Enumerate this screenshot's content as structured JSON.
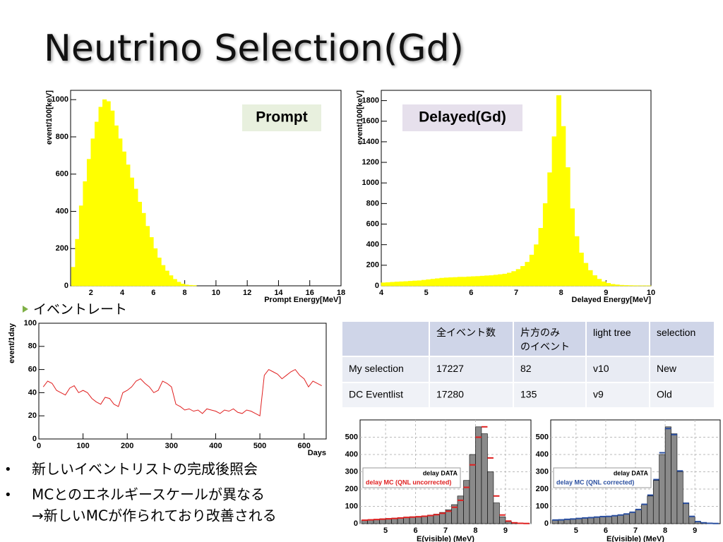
{
  "slide": {
    "title": "Neutrino Selection(Gd)",
    "rate_heading": "イベントレート",
    "bullets": [
      "新しいイベントリストの完成後照会",
      "MCとのエネルギースケールが異なる",
      "→新しいMCが作られており改善される"
    ]
  },
  "table": {
    "header": [
      "全イベント数",
      "片方のみ\nのイベント",
      "light tree",
      "selection"
    ],
    "rows": [
      [
        "My selection",
        "17227",
        "82",
        "v10",
        "New"
      ],
      [
        "DC Eventlist",
        "17280",
        "135",
        "v9",
        "Old"
      ]
    ]
  },
  "chart_data": [
    {
      "type": "histogram",
      "annotation": "Prompt",
      "x_label": "Prompt Energy[MeV]",
      "y_label": "event/100[keV]",
      "color": "#ffff00",
      "bins": [
        0.75,
        1,
        1.25,
        1.5,
        1.75,
        2,
        2.25,
        2.5,
        2.75,
        3,
        3.25,
        3.5,
        3.75,
        4,
        4.25,
        4.5,
        4.75,
        5,
        5.25,
        5.5,
        5.75,
        6,
        6.25,
        6.5,
        6.75,
        7,
        7.25,
        7.5,
        7.75,
        8,
        8.25,
        8.5,
        8.75
      ],
      "values": [
        100,
        250,
        430,
        560,
        680,
        790,
        880,
        960,
        1000,
        990,
        940,
        860,
        790,
        720,
        650,
        580,
        520,
        450,
        390,
        320,
        260,
        200,
        150,
        110,
        80,
        55,
        35,
        20,
        10,
        5,
        3,
        2
      ],
      "xlim": [
        0.7,
        18
      ],
      "xticks": [
        2,
        4,
        6,
        8,
        10,
        12,
        14,
        16,
        18
      ],
      "ylim": [
        0,
        1050
      ],
      "yticks": [
        0,
        200,
        400,
        600,
        800,
        1000
      ],
      "grid": false
    },
    {
      "type": "histogram",
      "annotation": "Delayed(Gd)",
      "x_label": "Delayed Energy[MeV]",
      "y_label": "event/100[keV]",
      "color": "#ffff00",
      "bins": [
        4,
        4.1,
        4.2,
        4.3,
        4.4,
        4.5,
        4.6,
        4.7,
        4.8,
        4.9,
        5,
        5.1,
        5.2,
        5.3,
        5.4,
        5.5,
        5.6,
        5.7,
        5.8,
        5.9,
        6,
        6.1,
        6.2,
        6.3,
        6.4,
        6.5,
        6.6,
        6.7,
        6.8,
        6.9,
        7,
        7.1,
        7.2,
        7.3,
        7.4,
        7.5,
        7.6,
        7.7,
        7.8,
        7.9,
        8,
        8.1,
        8.2,
        8.3,
        8.4,
        8.5,
        8.6,
        8.7,
        8.8,
        8.9,
        9,
        9.1,
        9.2,
        9.3,
        9.4,
        9.5,
        9.6,
        9.7,
        9.8,
        9.9,
        10
      ],
      "values": [
        30,
        32,
        35,
        38,
        40,
        42,
        45,
        48,
        50,
        55,
        60,
        65,
        70,
        75,
        78,
        80,
        82,
        85,
        85,
        88,
        90,
        92,
        95,
        98,
        100,
        105,
        110,
        115,
        125,
        140,
        160,
        190,
        230,
        300,
        400,
        560,
        800,
        1100,
        1450,
        1850,
        1550,
        1150,
        750,
        480,
        320,
        220,
        150,
        100,
        65,
        40,
        25,
        15,
        10,
        6,
        4,
        3,
        2,
        1,
        1,
        1
      ],
      "xlim": [
        4,
        10
      ],
      "xticks": [
        4,
        5,
        6,
        7,
        8,
        9,
        10
      ],
      "ylim": [
        0,
        1900
      ],
      "yticks": [
        0,
        200,
        400,
        600,
        800,
        1000,
        1200,
        1400,
        1600,
        1800
      ],
      "grid": false
    },
    {
      "type": "line",
      "x_label": "Days",
      "y_label": "event/1day",
      "color": "#e02020",
      "x": [
        10,
        20,
        30,
        40,
        50,
        60,
        70,
        80,
        90,
        100,
        110,
        120,
        130,
        140,
        150,
        160,
        170,
        180,
        190,
        200,
        210,
        220,
        230,
        240,
        250,
        260,
        270,
        280,
        290,
        300,
        310,
        320,
        330,
        340,
        350,
        360,
        370,
        380,
        390,
        400,
        410,
        420,
        430,
        440,
        450,
        460,
        470,
        480,
        490,
        500,
        510,
        520,
        530,
        540,
        550,
        560,
        570,
        580,
        590,
        600,
        610,
        620,
        630,
        640
      ],
      "values": [
        45,
        50,
        48,
        42,
        40,
        38,
        44,
        46,
        40,
        42,
        40,
        35,
        32,
        30,
        36,
        35,
        30,
        28,
        40,
        42,
        45,
        50,
        52,
        48,
        45,
        40,
        42,
        50,
        48,
        45,
        30,
        28,
        25,
        26,
        24,
        25,
        22,
        26,
        25,
        24,
        22,
        25,
        24,
        26,
        23,
        22,
        25,
        24,
        22,
        20,
        55,
        60,
        58,
        56,
        52,
        55,
        58,
        60,
        55,
        52,
        45,
        50,
        48,
        46
      ],
      "xlim": [
        0,
        650
      ],
      "xticks": [
        0,
        100,
        200,
        300,
        400,
        500,
        600
      ],
      "ylim": [
        0,
        100
      ],
      "yticks": [
        0,
        20,
        40,
        60,
        80,
        100
      ],
      "grid": false
    },
    {
      "type": "histogram",
      "x_label": "E(visible) (MeV)",
      "grid": true,
      "bins": [
        4.2,
        4.4,
        4.6,
        4.8,
        5,
        5.2,
        5.4,
        5.6,
        5.8,
        6,
        6.2,
        6.4,
        6.6,
        6.8,
        7,
        7.2,
        7.4,
        7.6,
        7.8,
        8,
        8.2,
        8.4,
        8.6,
        8.8,
        9,
        9.2,
        9.4,
        9.6,
        9.8
      ],
      "series": [
        {
          "name": "delay DATA",
          "color": "#8a8a8a",
          "values": [
            20,
            22,
            25,
            28,
            30,
            32,
            35,
            38,
            40,
            42,
            45,
            50,
            55,
            65,
            80,
            110,
            160,
            250,
            400,
            560,
            520,
            300,
            120,
            40,
            12,
            5,
            2,
            1
          ]
        },
        {
          "name": "delay MC (QNL uncorrected)",
          "color": "#e02020",
          "values": [
            20,
            22,
            24,
            26,
            28,
            30,
            33,
            36,
            38,
            40,
            43,
            47,
            52,
            60,
            72,
            95,
            135,
            210,
            340,
            500,
            560,
            380,
            160,
            50,
            15,
            5,
            2,
            1
          ]
        }
      ],
      "xlim": [
        4.15,
        9.85
      ],
      "xticks": [
        5,
        6,
        7,
        8,
        9
      ],
      "ylim": [
        0,
        600
      ],
      "yticks": [
        0,
        100,
        200,
        300,
        400,
        500
      ]
    },
    {
      "type": "histogram",
      "x_label": "E(visible) (MeV)",
      "grid": true,
      "bins": [
        4.2,
        4.4,
        4.6,
        4.8,
        5,
        5.2,
        5.4,
        5.6,
        5.8,
        6,
        6.2,
        6.4,
        6.6,
        6.8,
        7,
        7.2,
        7.4,
        7.6,
        7.8,
        8,
        8.2,
        8.4,
        8.6,
        8.8,
        9,
        9.2,
        9.4,
        9.6,
        9.8
      ],
      "series": [
        {
          "name": "delay DATA",
          "color": "#8a8a8a",
          "values": [
            20,
            22,
            25,
            28,
            30,
            32,
            35,
            38,
            40,
            42,
            45,
            50,
            55,
            65,
            80,
            110,
            160,
            250,
            400,
            560,
            520,
            300,
            120,
            40,
            12,
            5,
            2,
            1
          ]
        },
        {
          "name": "delay MC (QNL corrected)",
          "color": "#2a4fa0",
          "values": [
            21,
            22,
            25,
            27,
            30,
            33,
            35,
            38,
            41,
            42,
            46,
            50,
            56,
            66,
            82,
            112,
            165,
            255,
            410,
            550,
            515,
            305,
            118,
            42,
            12,
            5,
            2,
            1
          ]
        }
      ],
      "xlim": [
        4.15,
        9.85
      ],
      "xticks": [
        5,
        6,
        7,
        8,
        9
      ],
      "ylim": [
        0,
        600
      ],
      "yticks": [
        0,
        100,
        200,
        300,
        400,
        500
      ]
    }
  ]
}
